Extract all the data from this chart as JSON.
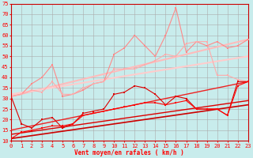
{
  "xlabel": "Vent moyen/en rafales ( km/h )",
  "xlim": [
    0,
    23
  ],
  "ylim": [
    10,
    75
  ],
  "yticks": [
    10,
    15,
    20,
    25,
    30,
    35,
    40,
    45,
    50,
    55,
    60,
    65,
    70,
    75
  ],
  "xticks": [
    0,
    1,
    2,
    3,
    4,
    5,
    6,
    7,
    8,
    9,
    10,
    11,
    12,
    13,
    14,
    15,
    16,
    17,
    18,
    19,
    20,
    21,
    22,
    23
  ],
  "bg_color": "#c8ecec",
  "grid_color": "#aaaaaa",
  "series": [
    {
      "x": [
        0,
        1,
        2,
        3,
        4,
        5,
        6,
        7,
        8,
        9,
        10,
        11,
        12,
        13,
        14,
        15,
        16,
        17,
        18,
        19,
        20,
        21,
        22,
        23
      ],
      "y": [
        31,
        18,
        16,
        20,
        21,
        16,
        18,
        23,
        24,
        25,
        32,
        33,
        36,
        35,
        32,
        27,
        31,
        30,
        25,
        25,
        25,
        22,
        38,
        38
      ],
      "color": "#dd0000",
      "lw": 0.8,
      "marker": "s",
      "ms": 1.5,
      "zorder": 5
    },
    {
      "x": [
        0,
        1,
        2,
        3,
        4,
        5,
        6,
        7,
        8,
        9,
        10,
        11,
        12,
        13,
        14,
        15,
        16,
        17,
        18,
        19,
        20,
        21,
        22,
        23
      ],
      "y": [
        11,
        14,
        15,
        16,
        17,
        17,
        18,
        22,
        23,
        24,
        25,
        26,
        27,
        28,
        28,
        27,
        28,
        29,
        25,
        25,
        25,
        22,
        36,
        38
      ],
      "color": "#ff0000",
      "lw": 0.8,
      "marker": "s",
      "ms": 1.5,
      "zorder": 5
    },
    {
      "x": [
        0,
        23
      ],
      "y": [
        11,
        27
      ],
      "color": "#cc0000",
      "lw": 1.2,
      "marker": null,
      "ms": 0,
      "zorder": 3
    },
    {
      "x": [
        0,
        23
      ],
      "y": [
        13,
        29
      ],
      "color": "#dd0000",
      "lw": 1.0,
      "marker": null,
      "ms": 0,
      "zorder": 3
    },
    {
      "x": [
        0,
        23
      ],
      "y": [
        15,
        38
      ],
      "color": "#ee2222",
      "lw": 1.0,
      "marker": null,
      "ms": 0,
      "zorder": 3
    },
    {
      "x": [
        0,
        1,
        2,
        3,
        4,
        5,
        6,
        7,
        8,
        9,
        10,
        11,
        12,
        13,
        14,
        15,
        16,
        17,
        18,
        19,
        20,
        21,
        22,
        23
      ],
      "y": [
        31,
        32,
        37,
        40,
        46,
        31,
        32,
        34,
        37,
        38,
        51,
        54,
        60,
        55,
        50,
        60,
        73,
        52,
        57,
        55,
        57,
        54,
        55,
        58
      ],
      "color": "#ff8888",
      "lw": 0.8,
      "marker": "s",
      "ms": 1.5,
      "zorder": 4
    },
    {
      "x": [
        0,
        1,
        2,
        3,
        4,
        5,
        6,
        7,
        8,
        9,
        10,
        11,
        12,
        13,
        14,
        15,
        16,
        17,
        18,
        19,
        20,
        21,
        22,
        23
      ],
      "y": [
        31,
        32,
        34,
        33,
        38,
        32,
        32,
        35,
        37,
        38,
        44,
        44,
        44,
        46,
        48,
        51,
        50,
        56,
        57,
        57,
        41,
        41,
        39,
        38
      ],
      "color": "#ffaaaa",
      "lw": 0.8,
      "marker": "s",
      "ms": 1.5,
      "zorder": 4
    },
    {
      "x": [
        0,
        23
      ],
      "y": [
        31,
        58
      ],
      "color": "#ffbbbb",
      "lw": 1.5,
      "marker": null,
      "ms": 0,
      "zorder": 2
    },
    {
      "x": [
        0,
        23
      ],
      "y": [
        32,
        50
      ],
      "color": "#ffcccc",
      "lw": 1.5,
      "marker": null,
      "ms": 0,
      "zorder": 2
    }
  ]
}
